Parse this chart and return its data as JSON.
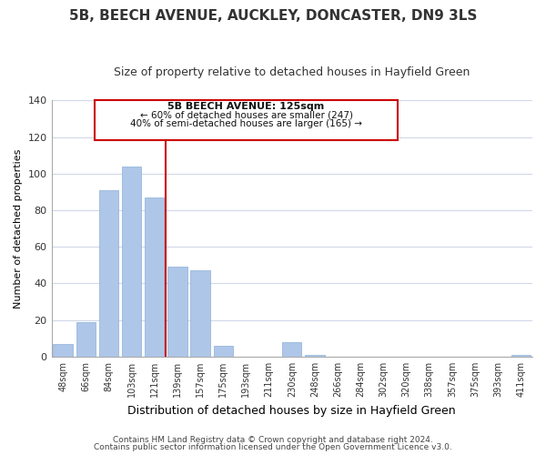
{
  "title": "5B, BEECH AVENUE, AUCKLEY, DONCASTER, DN9 3LS",
  "subtitle": "Size of property relative to detached houses in Hayfield Green",
  "xlabel": "Distribution of detached houses by size in Hayfield Green",
  "ylabel": "Number of detached properties",
  "bar_labels": [
    "48sqm",
    "66sqm",
    "84sqm",
    "103sqm",
    "121sqm",
    "139sqm",
    "157sqm",
    "175sqm",
    "193sqm",
    "211sqm",
    "230sqm",
    "248sqm",
    "266sqm",
    "284sqm",
    "302sqm",
    "320sqm",
    "338sqm",
    "357sqm",
    "375sqm",
    "393sqm",
    "411sqm"
  ],
  "bar_values": [
    7,
    19,
    91,
    104,
    87,
    49,
    47,
    6,
    0,
    0,
    8,
    1,
    0,
    0,
    0,
    0,
    0,
    0,
    0,
    0,
    1
  ],
  "bar_color": "#aec6e8",
  "property_line_label": "5B BEECH AVENUE: 125sqm",
  "annotation_line1": "← 60% of detached houses are smaller (247)",
  "annotation_line2": "40% of semi-detached houses are larger (165) →",
  "annotation_box_color": "#ffffff",
  "annotation_box_edge": "#cc0000",
  "vline_color": "#cc0000",
  "ylim": [
    0,
    140
  ],
  "yticks": [
    0,
    20,
    40,
    60,
    80,
    100,
    120,
    140
  ],
  "footer1": "Contains HM Land Registry data © Crown copyright and database right 2024.",
  "footer2": "Contains public sector information licensed under the Open Government Licence v3.0.",
  "background_color": "#ffffff",
  "grid_color": "#d0d8e8"
}
